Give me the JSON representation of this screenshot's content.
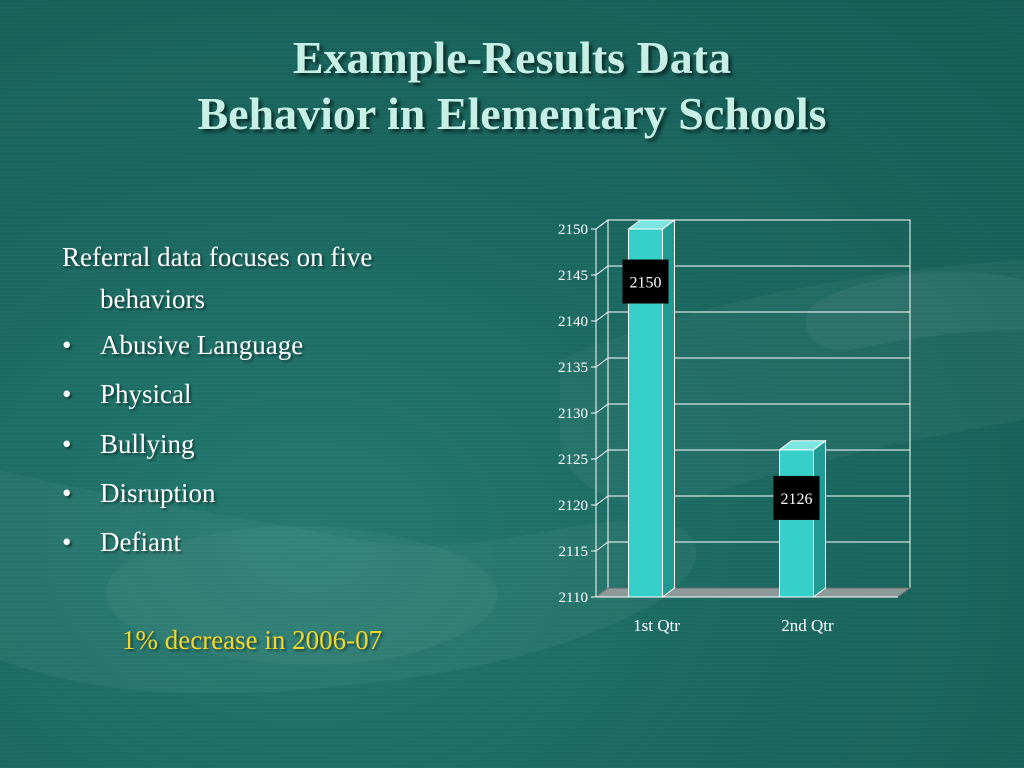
{
  "slide": {
    "title_line1": "Example-Results Data",
    "title_line2": "Behavior in Elementary Schools",
    "intro_line1": "Referral data focuses on five",
    "intro_line2": "behaviors",
    "bullet_char": "•",
    "bullets": [
      "Abusive Language",
      "Physical",
      "Bullying",
      "Disruption",
      "Defiant"
    ],
    "note": "1% decrease in 2006-07"
  },
  "colors": {
    "background": "#1c6a62",
    "title": "#c6f0e6",
    "note": "#f3d62a",
    "bar_front": "#37cfc9",
    "bar_side": "#229a94",
    "bar_top": "#7ee6e0",
    "label_box": "#000000"
  },
  "chart_data": {
    "type": "bar",
    "style": "3d",
    "categories": [
      "1st Qtr",
      "2nd Qtr"
    ],
    "values": [
      2150,
      2126
    ],
    "data_labels": [
      "2150",
      "2126"
    ],
    "ylim": [
      2110,
      2150
    ],
    "yticks": [
      2110,
      2115,
      2120,
      2125,
      2130,
      2135,
      2140,
      2145,
      2150
    ],
    "grid": true,
    "legend": "none",
    "xlabel": "",
    "ylabel": ""
  }
}
